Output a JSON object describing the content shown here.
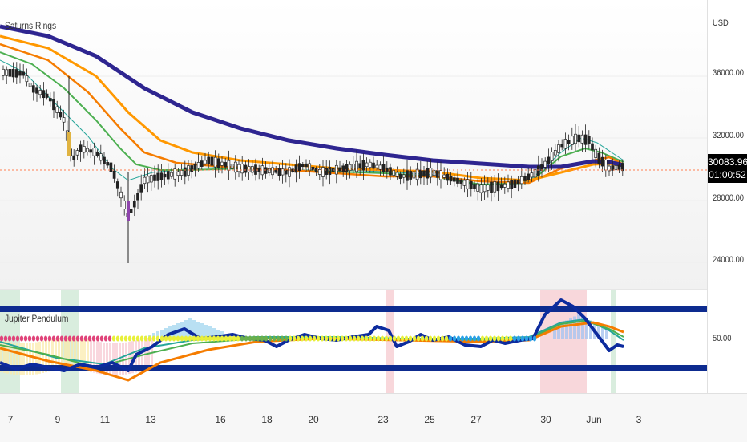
{
  "main_pane": {
    "indicator_name": "Saturns Rings"
  },
  "osc_pane": {
    "indicator_name": "Jupiter Pendulum"
  },
  "price_axis": {
    "currency": "USD",
    "labels": [
      "36000.00",
      "32000.00",
      "28000.00",
      "24000.00"
    ],
    "last_price": "30083.96",
    "countdown": "01:00:52"
  },
  "osc_axis": {
    "labels": [
      "50.00"
    ]
  },
  "time_axis": {
    "ticks": [
      "7",
      "9",
      "11",
      "13",
      "16",
      "18",
      "20",
      "23",
      "25",
      "27",
      "30",
      "Jun",
      "3"
    ]
  },
  "colors": {
    "ma_purple": "#2e2590",
    "ma_orange": "#ff9800",
    "ma_dark_orange": "#f57c00",
    "ma_green": "#4caf50",
    "ma_teal": "#26a69a",
    "pendulum_line": "#0d2b9e",
    "bands": "#0d2b8f",
    "last_price_line": "#ff7f50"
  }
}
